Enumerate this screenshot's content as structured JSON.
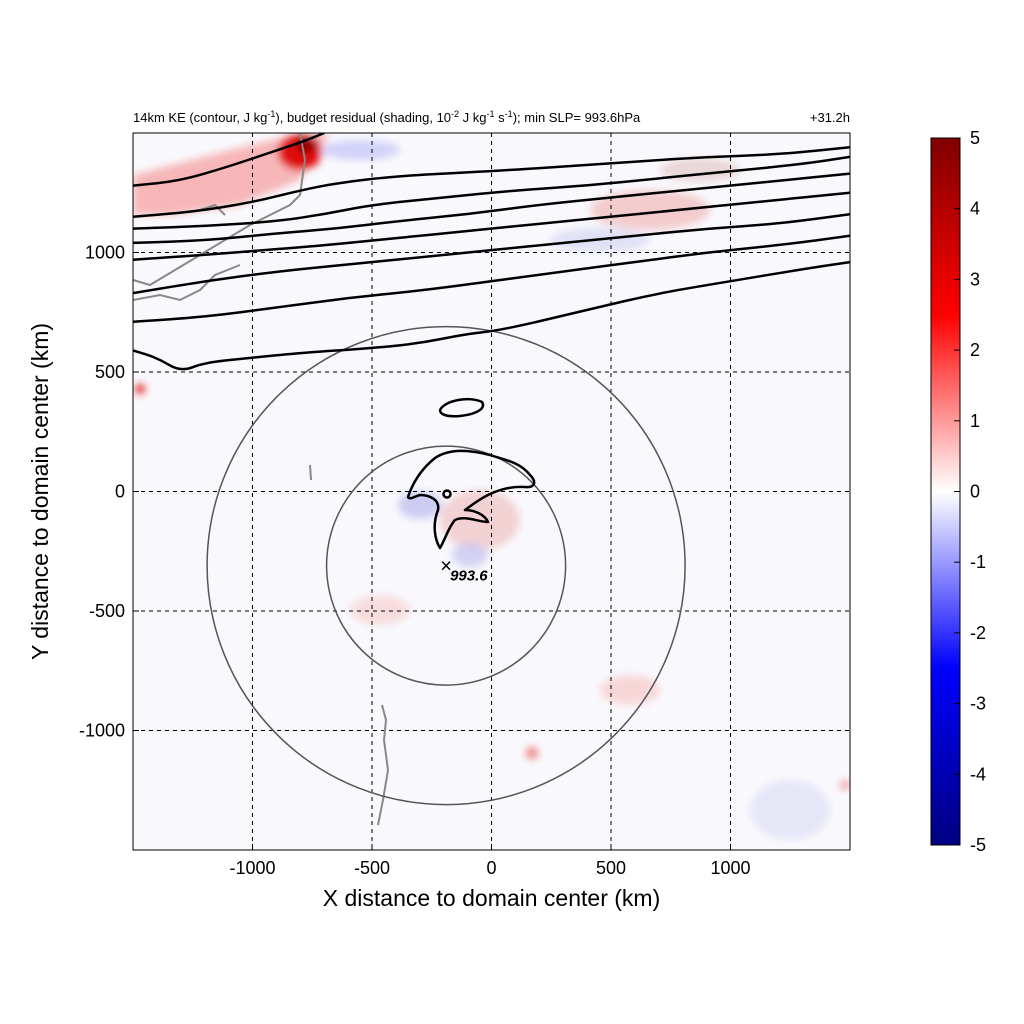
{
  "chart_data": {
    "type": "heatmap",
    "title": "14km KE (contour, J kg-1), budget residual (shading, 10-2 J kg-1 s-1); min SLP= 993.6hPa",
    "title_parts": {
      "p1": "14km KE (contour, J kg",
      "p2": "), budget residual (shading, 10",
      "p3": " J kg",
      "p4": " s",
      "p5": "); min SLP= 993.6hPa",
      "sup_a": "-1",
      "sup_b": "-2",
      "sup_c": "-1",
      "sup_d": "-1"
    },
    "time_label": "+31.2h",
    "xlabel": "X distance to domain center (km)",
    "ylabel": "Y distance to domain center (km)",
    "xlim": [
      -1500,
      1500
    ],
    "ylim": [
      -1500,
      1500
    ],
    "xticks": [
      -1000,
      -500,
      0,
      500,
      1000
    ],
    "yticks": [
      -1000,
      -500,
      0,
      500,
      1000
    ],
    "grid": true,
    "colorbar": {
      "min": -5,
      "max": 5,
      "ticks": [
        5,
        4,
        3,
        2,
        1,
        0,
        -1,
        -2,
        -3,
        -4,
        -5
      ],
      "colors": [
        "#000080",
        "#0000ff",
        "#ffffff",
        "#ff0000",
        "#800000"
      ]
    },
    "storm_center": {
      "x": -190,
      "y": -310,
      "label": "993.6"
    },
    "rings": [
      {
        "x": -190,
        "y": -310,
        "radius_km": 500
      },
      {
        "x": -190,
        "y": -310,
        "radius_km": 1000
      }
    ],
    "ke_contours": [
      [
        [
          -1500,
          1280
        ],
        [
          -1300,
          1300
        ],
        [
          -1100,
          1360
        ],
        [
          -950,
          1410
        ],
        [
          -800,
          1460
        ],
        [
          -700,
          1500
        ]
      ],
      [
        [
          -1500,
          1150
        ],
        [
          -1250,
          1170
        ],
        [
          -1000,
          1210
        ],
        [
          -800,
          1260
        ],
        [
          -650,
          1290
        ],
        [
          -400,
          1320
        ],
        [
          0,
          1340
        ],
        [
          300,
          1360
        ],
        [
          600,
          1380
        ],
        [
          900,
          1400
        ],
        [
          1200,
          1410
        ],
        [
          1500,
          1440
        ]
      ],
      [
        [
          -1500,
          1100
        ],
        [
          -1200,
          1110
        ],
        [
          -900,
          1130
        ],
        [
          -700,
          1160
        ],
        [
          -500,
          1200
        ],
        [
          -200,
          1230
        ],
        [
          100,
          1260
        ],
        [
          400,
          1280
        ],
        [
          700,
          1310
        ],
        [
          1000,
          1340
        ],
        [
          1300,
          1370
        ],
        [
          1500,
          1400
        ]
      ],
      [
        [
          -1500,
          1040
        ],
        [
          -1200,
          1050
        ],
        [
          -900,
          1080
        ],
        [
          -650,
          1100
        ],
        [
          -400,
          1130
        ],
        [
          -100,
          1160
        ],
        [
          200,
          1200
        ],
        [
          500,
          1230
        ],
        [
          800,
          1260
        ],
        [
          1100,
          1290
        ],
        [
          1500,
          1330
        ]
      ],
      [
        [
          -1500,
          970
        ],
        [
          -1200,
          990
        ],
        [
          -950,
          1010
        ],
        [
          -700,
          1030
        ],
        [
          -400,
          1060
        ],
        [
          -100,
          1090
        ],
        [
          200,
          1120
        ],
        [
          500,
          1150
        ],
        [
          800,
          1180
        ],
        [
          1100,
          1210
        ],
        [
          1500,
          1250
        ]
      ],
      [
        [
          -1500,
          830
        ],
        [
          -1200,
          880
        ],
        [
          -900,
          920
        ],
        [
          -600,
          950
        ],
        [
          -300,
          980
        ],
        [
          0,
          1010
        ],
        [
          300,
          1040
        ],
        [
          600,
          1070
        ],
        [
          900,
          1100
        ],
        [
          1200,
          1120
        ],
        [
          1500,
          1160
        ]
      ],
      [
        [
          -1500,
          710
        ],
        [
          -1200,
          730
        ],
        [
          -900,
          770
        ],
        [
          -600,
          810
        ],
        [
          -300,
          840
        ],
        [
          0,
          880
        ],
        [
          300,
          920
        ],
        [
          600,
          960
        ],
        [
          900,
          1000
        ],
        [
          1200,
          1030
        ],
        [
          1500,
          1070
        ]
      ],
      [
        [
          -1500,
          590
        ],
        [
          -1400,
          560
        ],
        [
          -1300,
          500
        ],
        [
          -1200,
          540
        ],
        [
          -1000,
          560
        ],
        [
          -800,
          580
        ],
        [
          -500,
          600
        ],
        [
          -300,
          620
        ],
        [
          -100,
          660
        ],
        [
          0,
          670
        ],
        [
          150,
          700
        ],
        [
          400,
          760
        ],
        [
          700,
          830
        ],
        [
          1000,
          880
        ],
        [
          1300,
          930
        ],
        [
          1500,
          960
        ]
      ]
    ]
  }
}
